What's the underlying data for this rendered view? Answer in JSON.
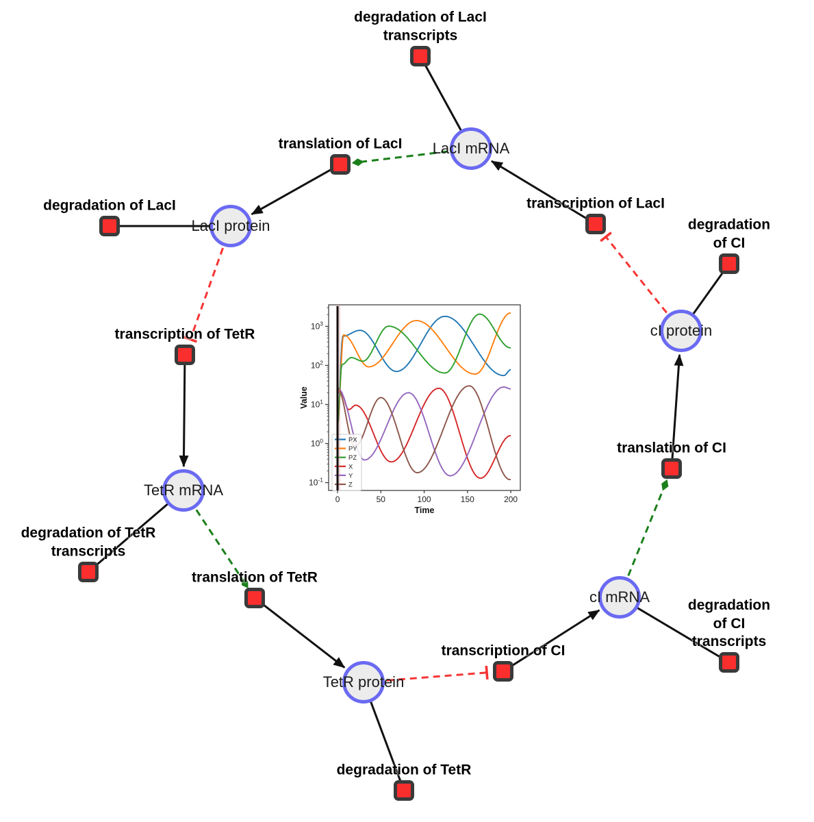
{
  "network": {
    "species": [
      {
        "id": "laci_mrna",
        "label": "LacI mRNA"
      },
      {
        "id": "laci_protein",
        "label": "LacI protein"
      },
      {
        "id": "ci_protein",
        "label": "cI protein"
      },
      {
        "id": "tetr_mrna",
        "label": "TetR mRNA"
      },
      {
        "id": "ci_mrna",
        "label": "cI mRNA"
      },
      {
        "id": "tetr_protein",
        "label": "TetR protein"
      }
    ],
    "reactions": [
      {
        "id": "deg_laci_tx",
        "label": "degradation of LacI\ntranscripts"
      },
      {
        "id": "transl_laci",
        "label": "translation of LacI"
      },
      {
        "id": "transcr_laci",
        "label": "transcription of LacI"
      },
      {
        "id": "deg_laci",
        "label": "degradation of LacI"
      },
      {
        "id": "deg_ci",
        "label": "degradation of CI"
      },
      {
        "id": "transcr_tetr",
        "label": "transcription of TetR"
      },
      {
        "id": "deg_tetr_tx",
        "label": "degradation of TetR\ntranscripts"
      },
      {
        "id": "transl_tetr",
        "label": "translation of TetR"
      },
      {
        "id": "transl_ci",
        "label": "translation of CI"
      },
      {
        "id": "transcr_ci",
        "label": "transcription of CI"
      },
      {
        "id": "deg_ci_tx",
        "label": "degradation of CI\ntranscripts"
      },
      {
        "id": "deg_tetr",
        "label": "degradation of TetR"
      }
    ],
    "edges": [
      {
        "from": "laci_mrna",
        "to": "deg_laci_tx",
        "type": "consumption"
      },
      {
        "from": "transl_laci",
        "to": "laci_protein",
        "type": "production"
      },
      {
        "from": "transcr_laci",
        "to": "laci_mrna",
        "type": "production"
      },
      {
        "from": "laci_mrna",
        "to": "transl_laci",
        "type": "modifier"
      },
      {
        "from": "laci_protein",
        "to": "deg_laci",
        "type": "consumption"
      },
      {
        "from": "laci_protein",
        "to": "transcr_tetr",
        "type": "inhibition"
      },
      {
        "from": "transcr_tetr",
        "to": "tetr_mrna",
        "type": "production"
      },
      {
        "from": "tetr_mrna",
        "to": "deg_tetr_tx",
        "type": "consumption"
      },
      {
        "from": "tetr_mrna",
        "to": "transl_tetr",
        "type": "modifier"
      },
      {
        "from": "transl_tetr",
        "to": "tetr_protein",
        "type": "production"
      },
      {
        "from": "tetr_protein",
        "to": "deg_tetr",
        "type": "consumption"
      },
      {
        "from": "tetr_protein",
        "to": "transcr_ci",
        "type": "inhibition"
      },
      {
        "from": "transcr_ci",
        "to": "ci_mrna",
        "type": "production"
      },
      {
        "from": "ci_mrna",
        "to": "deg_ci_tx",
        "type": "consumption"
      },
      {
        "from": "ci_mrna",
        "to": "transl_ci",
        "type": "modifier"
      },
      {
        "from": "transl_ci",
        "to": "ci_protein",
        "type": "production"
      },
      {
        "from": "ci_protein",
        "to": "deg_ci",
        "type": "consumption"
      },
      {
        "from": "ci_protein",
        "to": "transcr_laci",
        "type": "inhibition"
      }
    ]
  },
  "colors": {
    "species_fill": "#ececec",
    "species_border": "#6a6af2",
    "reaction_fill": "#fb2e2e",
    "reaction_border": "#3a3a3a",
    "edge_black": "#111111",
    "modifier_green": "#1a7f1a",
    "inhibition_red": "#f63535"
  },
  "chart_data": {
    "type": "line",
    "title": "",
    "xlabel": "Time",
    "ylabel": "Value",
    "x_range": [
      -10.3,
      211
    ],
    "y_scale": "log",
    "y_range_log10": [
      -1.2,
      3.55
    ],
    "xticks": [
      0,
      50,
      100,
      150,
      200
    ],
    "ytick_exponents": [
      -1,
      0,
      1,
      2,
      3
    ],
    "legend_position": "lower left",
    "grid": false,
    "vline_x": 0,
    "series": [
      {
        "name": "PX",
        "color": "#1f77b4",
        "keypoints": [
          [
            0,
            3
          ],
          [
            6,
            560
          ],
          [
            26,
            790
          ],
          [
            68,
            70
          ],
          [
            124,
            1800
          ],
          [
            192,
            55
          ],
          [
            200,
            78
          ]
        ]
      },
      {
        "name": "PY",
        "color": "#ff7f0e",
        "keypoints": [
          [
            0,
            3
          ],
          [
            7,
            600
          ],
          [
            36,
            92
          ],
          [
            91,
            1400
          ],
          [
            159,
            60
          ],
          [
            200,
            2200
          ]
        ]
      },
      {
        "name": "PZ",
        "color": "#2ca02c",
        "keypoints": [
          [
            0,
            3
          ],
          [
            5,
            105
          ],
          [
            16,
            158
          ],
          [
            29,
            128
          ],
          [
            59,
            1010
          ],
          [
            124,
            64
          ],
          [
            164,
            2050
          ],
          [
            200,
            280
          ]
        ]
      },
      {
        "name": "X",
        "color": "#d62728",
        "keypoints": [
          [
            0,
            20
          ],
          [
            3,
            22
          ],
          [
            13,
            7.4
          ],
          [
            21,
            9.6
          ],
          [
            62,
            0.34
          ],
          [
            117,
            26
          ],
          [
            165,
            0.13
          ],
          [
            200,
            1.6
          ]
        ]
      },
      {
        "name": "Y",
        "color": "#9467bd",
        "keypoints": [
          [
            0,
            26
          ],
          [
            31,
            0.38
          ],
          [
            82,
            20
          ],
          [
            130,
            0.15
          ],
          [
            192,
            28
          ],
          [
            200,
            25
          ]
        ]
      },
      {
        "name": "Z",
        "color": "#8c564b",
        "keypoints": [
          [
            0,
            26
          ],
          [
            20,
            0.85
          ],
          [
            50,
            15
          ],
          [
            92,
            0.18
          ],
          [
            152,
            30
          ],
          [
            199,
            0.12
          ]
        ]
      }
    ]
  }
}
